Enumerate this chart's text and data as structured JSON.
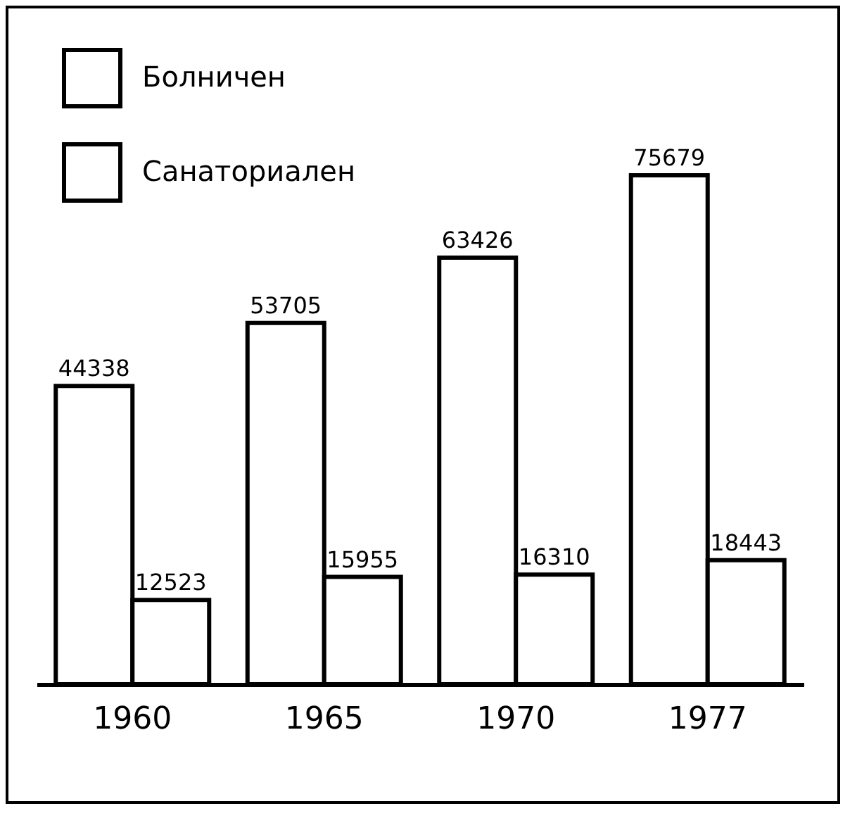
{
  "chart_data": {
    "type": "bar",
    "categories": [
      "1960",
      "1965",
      "1970",
      "1977"
    ],
    "series": [
      {
        "name": "Болничен",
        "color": "#ffffff",
        "values": [
          44338,
          53705,
          63426,
          75679
        ]
      },
      {
        "name": "Санаториален",
        "color": "#ffffff",
        "values": [
          12523,
          15955,
          16310,
          18443
        ]
      }
    ],
    "data_labels": true,
    "legend": "top left",
    "tick_labels": "x"
  }
}
